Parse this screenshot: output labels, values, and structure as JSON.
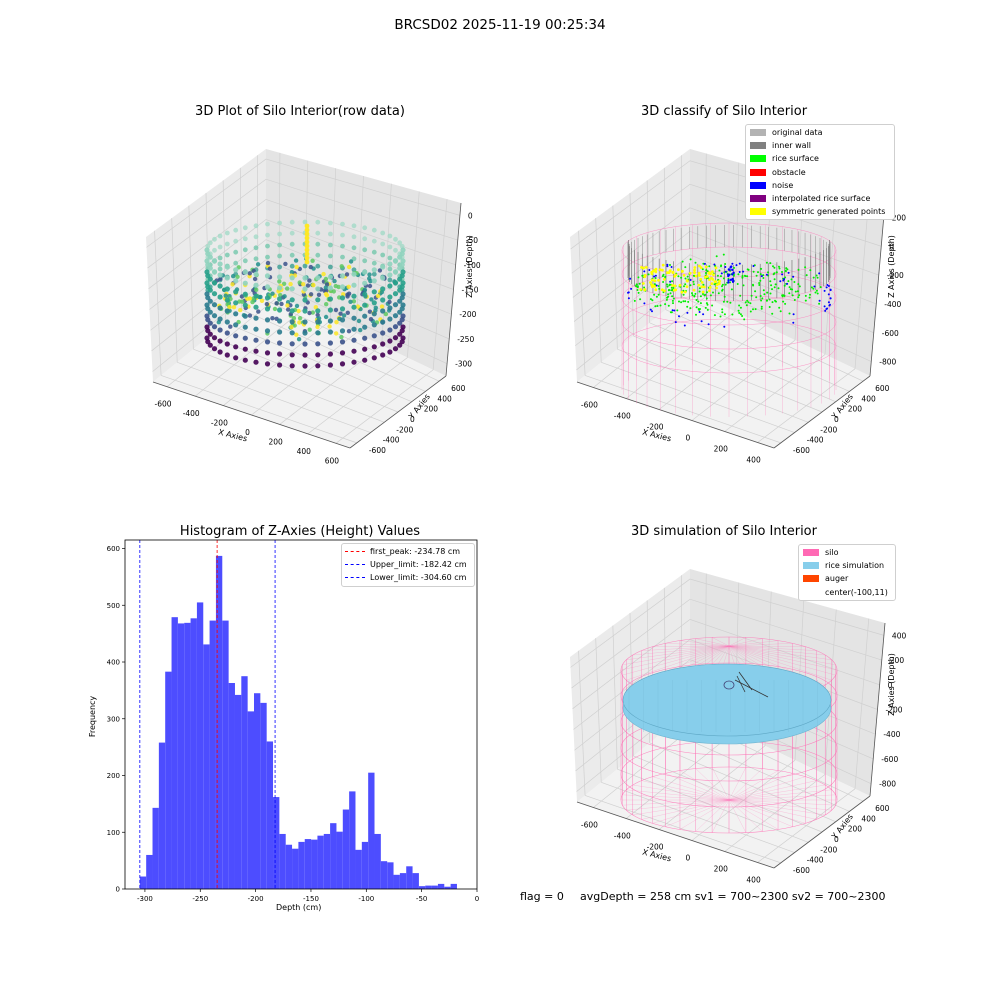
{
  "figure": {
    "suptitle": "BRCSD02 2025-11-19 00:25:34",
    "footer": {
      "flag": "flag = 0",
      "stats": "avgDepth = 258 cm  sv1 = 700~2300  sv2 = 700~2300"
    }
  },
  "colors": {
    "histogram_bar": "#4d4dff",
    "peak_line": "#ff0000",
    "limit_line": "#0000ff",
    "silo_wire": "#ff6eb4",
    "rice_fill": "#87ceeb",
    "pane": "#f2f2f2",
    "viridis": [
      "#440154",
      "#3b528b",
      "#21918c",
      "#5ec962",
      "#fde725"
    ]
  },
  "chart_data": [
    {
      "type": "scatter",
      "title": "3D Plot of Silo Interior(row data)",
      "xlabel": "X Axies",
      "ylabel": "Y Axies",
      "zlabel": "Z Axies (Depth)",
      "x_ticks": [
        "-600",
        "-400",
        "-200",
        "0",
        "200",
        "400",
        "600"
      ],
      "y_ticks": [
        "-600",
        "-400",
        "-200",
        "0",
        "200",
        "400",
        "600"
      ],
      "z_ticks": [
        "0",
        "-50",
        "-100",
        "-150",
        "-200",
        "-250",
        "-300"
      ],
      "xlim": [
        -700,
        650
      ],
      "ylim": [
        -650,
        650
      ],
      "zlim": [
        -340,
        0
      ],
      "colormap": "viridis"
    },
    {
      "type": "scatter",
      "title": "3D classify of Silo Interior",
      "xlabel": "X Axies",
      "ylabel": "Y Axies",
      "zlabel": "Z Axies (Depth)",
      "x_ticks": [
        "-600",
        "-400",
        "-200",
        "0",
        "200",
        "400"
      ],
      "y_ticks": [
        "-600",
        "-400",
        "-200",
        "0",
        "200",
        "400",
        "600"
      ],
      "z_ticks": [
        "200",
        "0",
        "-200",
        "-400",
        "-600",
        "-800"
      ],
      "legend": [
        {
          "label": "original data",
          "color": "#b3b3b3"
        },
        {
          "label": "inner wall",
          "color": "#808080"
        },
        {
          "label": "rice surface",
          "color": "#00ff00"
        },
        {
          "label": "obstacle",
          "color": "#ff0000"
        },
        {
          "label": "noise",
          "color": "#0000ff"
        },
        {
          "label": "interpolated rice surface",
          "color": "#800080"
        },
        {
          "label": "symmetric generated points",
          "color": "#ffff00"
        }
      ],
      "legend_position": "upper right"
    },
    {
      "type": "bar",
      "title": "Histogram of Z-Axies (Height) Values",
      "xlabel": "Depth (cm)",
      "ylabel": "Frequency",
      "xlim": [
        -318,
        0
      ],
      "ylim": [
        0,
        615
      ],
      "x_ticks": [
        -300,
        -250,
        -200,
        -150,
        -100,
        -50,
        0
      ],
      "y_ticks": [
        0,
        100,
        200,
        300,
        400,
        500,
        600
      ],
      "bin_start": -304.6,
      "bin_width": 5.73,
      "values": [
        22,
        60,
        143,
        258,
        383,
        479,
        468,
        469,
        477,
        505,
        431,
        473,
        587,
        473,
        363,
        342,
        375,
        313,
        345,
        328,
        260,
        162,
        97,
        78,
        71,
        83,
        88,
        87,
        94,
        97,
        116,
        101,
        140,
        172,
        69,
        83,
        205,
        97,
        49,
        47,
        25,
        28,
        40,
        28,
        5,
        6,
        6,
        9,
        4,
        9
      ],
      "vlines": [
        {
          "x": -234.78,
          "label": "first_peak: -234.78 cm",
          "color": "#ff0000"
        },
        {
          "x": -182.42,
          "label": "Upper_limit: -182.42 cm",
          "color": "#0000ff"
        },
        {
          "x": -304.6,
          "label": "Lower_limit: -304.60 cm",
          "color": "#0000ff"
        }
      ],
      "legend_position": "upper right"
    },
    {
      "type": "scatter",
      "title": "3D simulation of Silo Interior",
      "xlabel": "X Axies",
      "ylabel": "Y Axies",
      "zlabel": "Z Axies (Depth)",
      "x_ticks": [
        "-600",
        "-400",
        "-200",
        "0",
        "200",
        "400"
      ],
      "y_ticks": [
        "-600",
        "-400",
        "-200",
        "0",
        "200",
        "400",
        "600"
      ],
      "z_ticks": [
        "400",
        "200",
        "0",
        "-200",
        "-400",
        "-600",
        "-800"
      ],
      "legend": [
        {
          "label": "silo",
          "color": "#ff69b4"
        },
        {
          "label": "rice simulation",
          "color": "#87ceeb"
        },
        {
          "label": "auger",
          "color": "#ff4500"
        },
        {
          "label": "center(-100,11)",
          "color": ""
        }
      ],
      "legend_position": "upper right"
    }
  ]
}
